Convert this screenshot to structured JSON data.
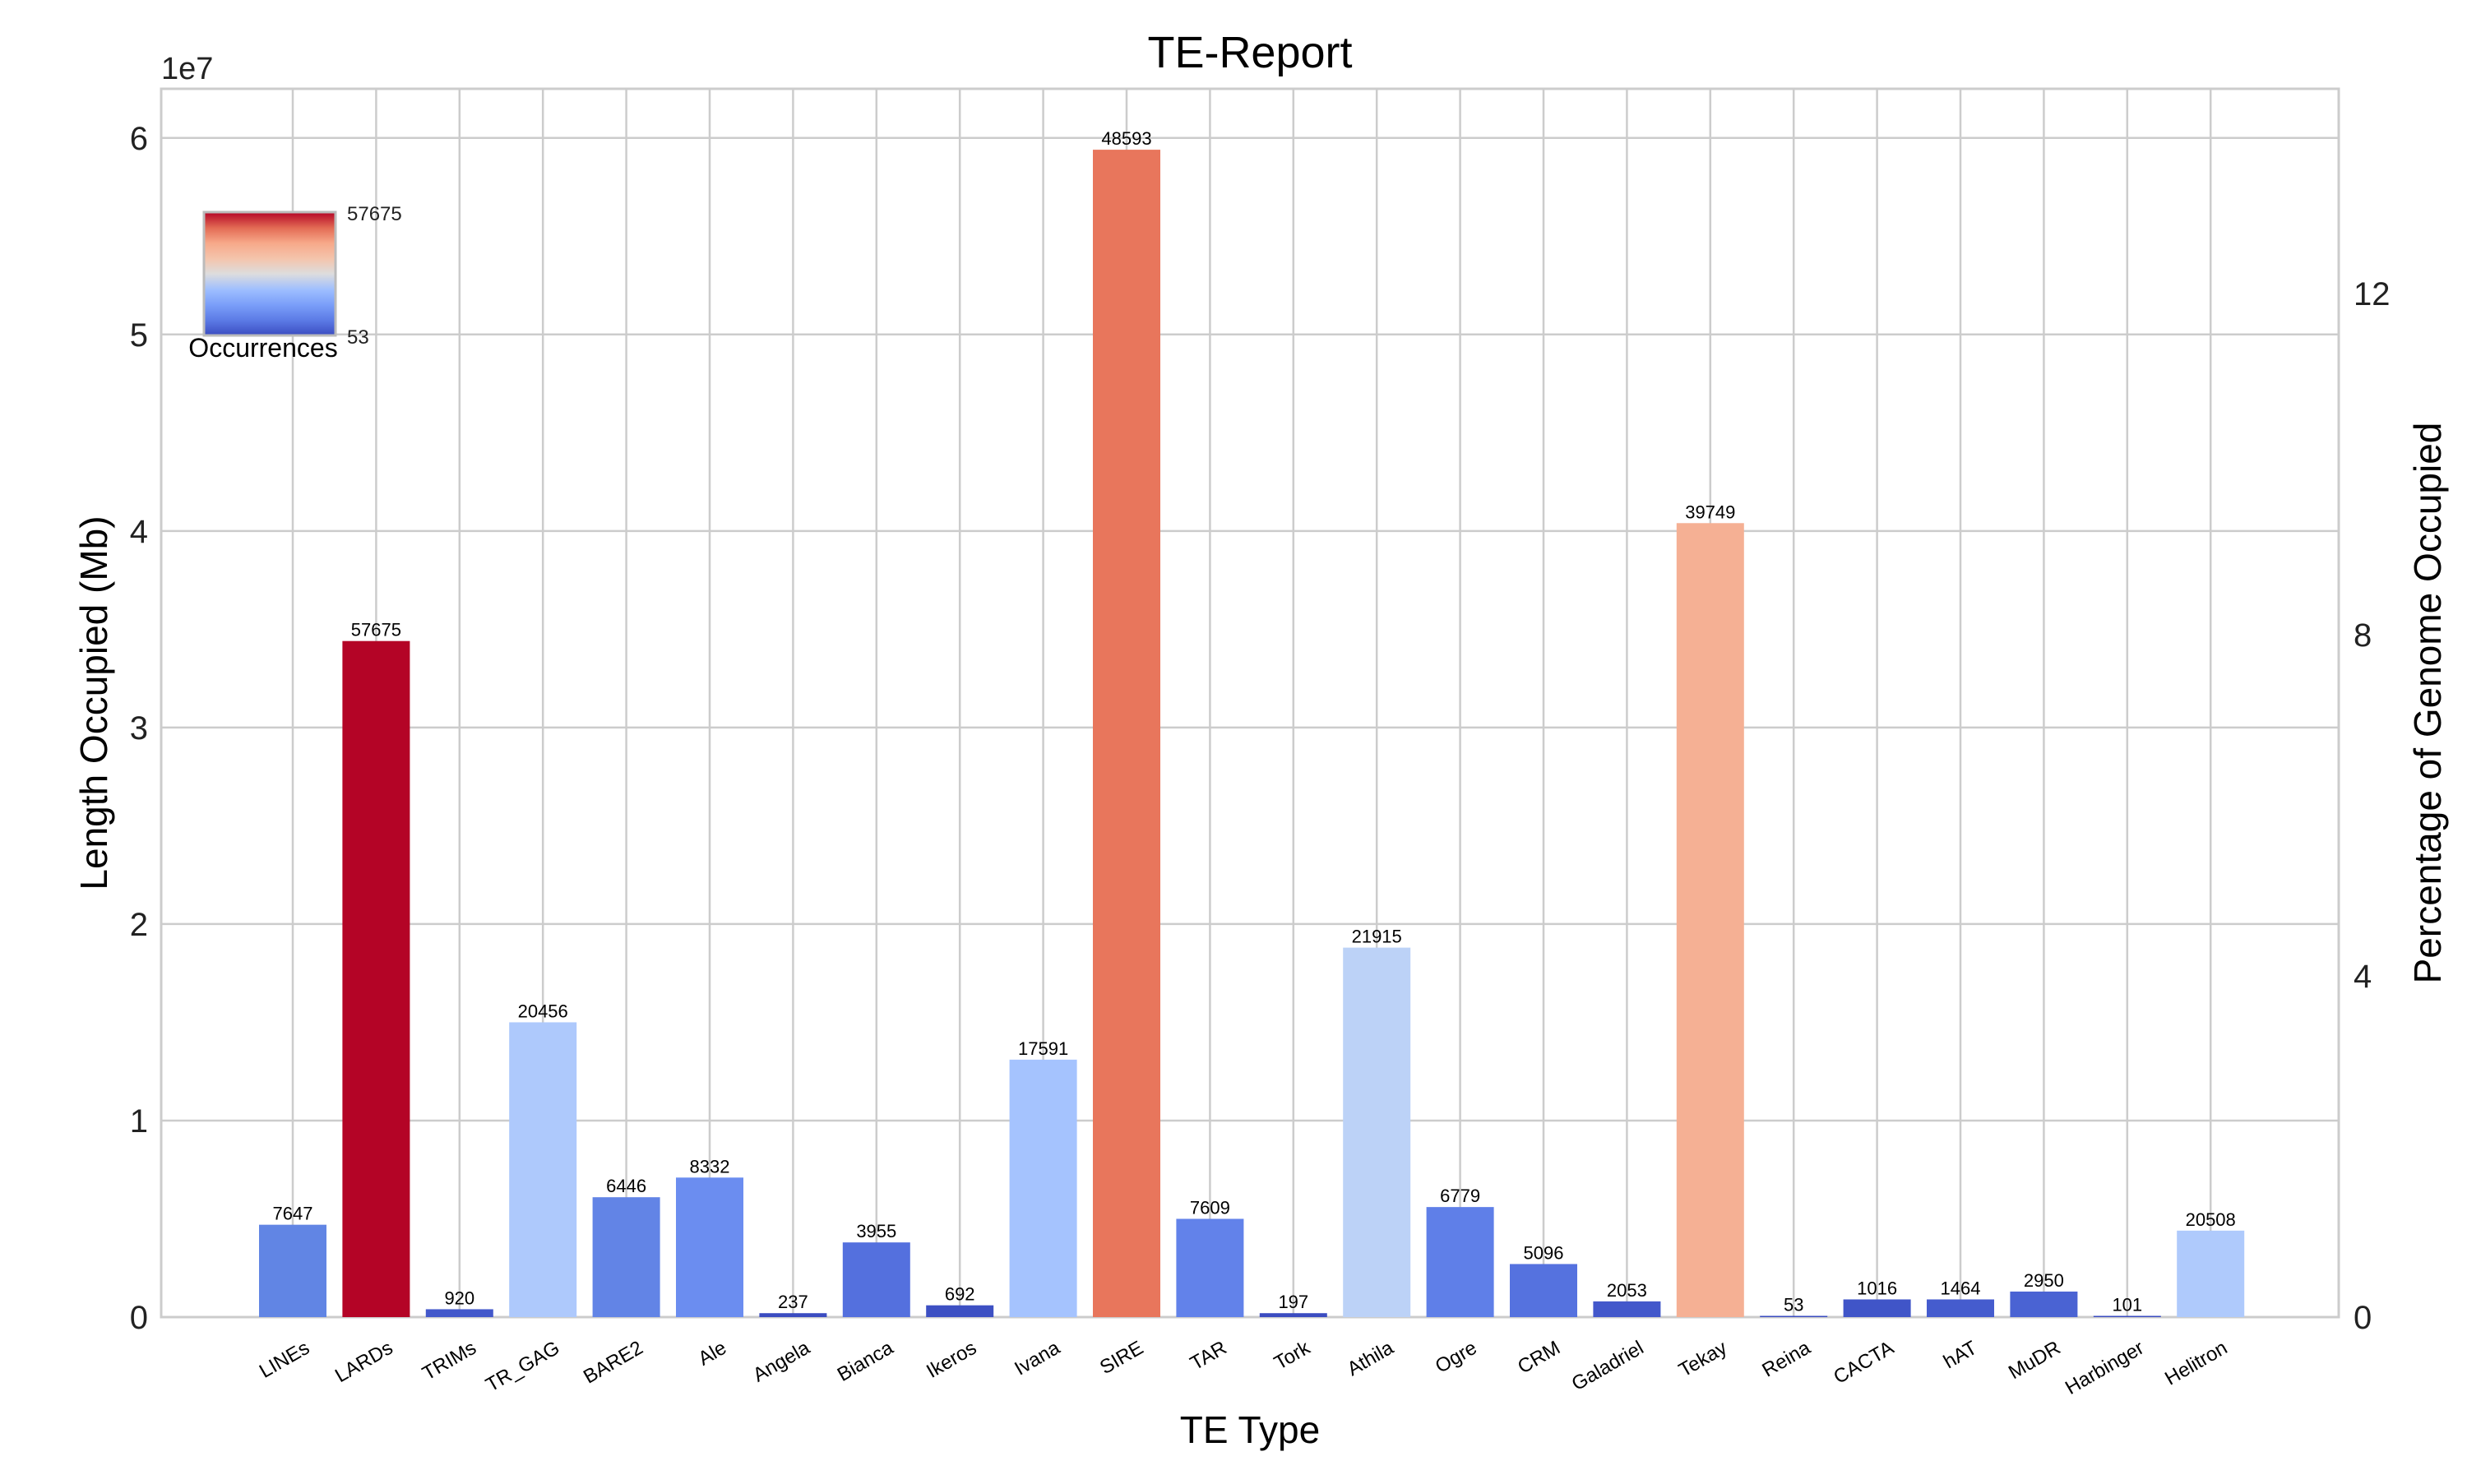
{
  "chart_data": {
    "type": "bar",
    "title": "TE-Report",
    "xlabel": "TE Type",
    "ylabel": "Length Occupied (Mb)",
    "y2label": "Percentage of Genome Occupied",
    "y_offset_label": "1e7",
    "ylim": [
      0,
      6.25
    ],
    "y2lim": [
      0,
      14.4
    ],
    "yticks": [
      "0",
      "1",
      "2",
      "3",
      "4",
      "5",
      "6"
    ],
    "y2ticks": [
      "0",
      "4",
      "8",
      "12"
    ],
    "grid": true,
    "categories": [
      "LINEs",
      "LARDs",
      "TRIMs",
      "TR_GAG",
      "BARE2",
      "Ale",
      "Angela",
      "Bianca",
      "Ikeros",
      "Ivana",
      "SIRE",
      "TAR",
      "Tork",
      "Athila",
      "Ogre",
      "CRM",
      "Galadriel",
      "Tekay",
      "Reina",
      "CACTA",
      "hAT",
      "MuDR",
      "Harbinger",
      "Helitron"
    ],
    "values": [
      0.47,
      3.44,
      0.04,
      1.5,
      0.61,
      0.71,
      0.02,
      0.38,
      0.06,
      1.31,
      5.94,
      0.5,
      0.02,
      1.88,
      0.56,
      0.27,
      0.08,
      4.04,
      0.005,
      0.09,
      0.09,
      0.13,
      0.005,
      0.44
    ],
    "occurrences": [
      "7647",
      "57675",
      "920",
      "20456",
      "6446",
      "8332",
      "237",
      "3955",
      "692",
      "17591",
      "48593",
      "7609",
      "197",
      "21915",
      "6779",
      "5096",
      "2053",
      "39749",
      "53",
      "1016",
      "1464",
      "2950",
      "101",
      "20508"
    ],
    "bar_colors": [
      "#6185e4",
      "#b40426",
      "#4358cb",
      "#aec9fc",
      "#6284e6",
      "#6b8df0",
      "#3b4cc0",
      "#5470de",
      "#3d50c3",
      "#a5c3fe",
      "#e8765c",
      "#6282ea",
      "#3b4cc0",
      "#bcd2f7",
      "#5f7fe8",
      "#5572df",
      "#4358cb",
      "#f5b094",
      "#3b4cc0",
      "#4055c8",
      "#455cce",
      "#4a63d3",
      "#3b4cc0",
      "#afcafc"
    ],
    "colorbar": {
      "label": "Occurrences",
      "max_label": "57675",
      "min_label": "53",
      "colormap": "coolwarm",
      "position": "top-left"
    }
  }
}
